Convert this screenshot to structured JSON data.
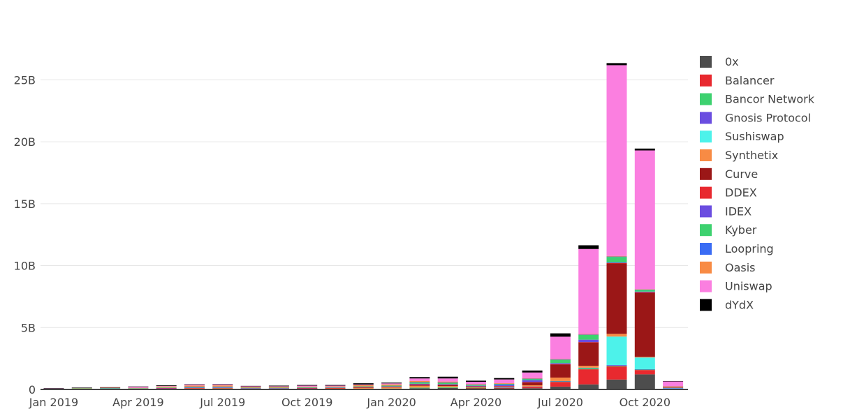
{
  "chart_data": {
    "type": "bar",
    "stacked": true,
    "title": "",
    "xlabel": "",
    "ylabel": "",
    "ylim": [
      0,
      27.5
    ],
    "y_unit": "B",
    "yticks": [
      0,
      5,
      10,
      15,
      20,
      25
    ],
    "ytick_labels": [
      "0",
      "5B",
      "10B",
      "15B",
      "20B",
      "25B"
    ],
    "grid": true,
    "legend_position": "right",
    "categories": [
      "Jan 2019",
      "Feb 2019",
      "Mar 2019",
      "Apr 2019",
      "May 2019",
      "Jun 2019",
      "Jul 2019",
      "Aug 2019",
      "Sep 2019",
      "Oct 2019",
      "Nov 2019",
      "Dec 2019",
      "Jan 2020",
      "Feb 2020",
      "Mar 2020",
      "Apr 2020",
      "May 2020",
      "Jun 2020",
      "Jul 2020",
      "Aug 2020",
      "Sep 2020",
      "Oct 2020",
      "Nov 2020"
    ],
    "xtick_labels": [
      "Jan 2019",
      "Apr 2019",
      "Jul 2019",
      "Oct 2019",
      "Jan 2020",
      "Apr 2020",
      "Jul 2020",
      "Oct 2020"
    ],
    "xtick_indices": [
      0,
      3,
      6,
      9,
      12,
      15,
      18,
      21
    ],
    "series": [
      {
        "name": "0x",
        "color": "#4d4d4d",
        "values": [
          0.01,
          0.02,
          0.03,
          0.02,
          0.04,
          0.05,
          0.05,
          0.03,
          0.03,
          0.03,
          0.03,
          0.04,
          0.05,
          0.1,
          0.12,
          0.1,
          0.1,
          0.1,
          0.23,
          0.41,
          0.8,
          1.22,
          0.05
        ]
      },
      {
        "name": "Balancer",
        "color": "#e8292f",
        "values": [
          0,
          0,
          0,
          0,
          0,
          0,
          0,
          0,
          0,
          0,
          0,
          0,
          0,
          0,
          0,
          0.01,
          0.02,
          0.1,
          0.38,
          1.22,
          1.07,
          0.35,
          0.02
        ]
      },
      {
        "name": "Bancor Network",
        "color": "#3dd16f",
        "values": [
          0.01,
          0.02,
          0.02,
          0.02,
          0.03,
          0.03,
          0.03,
          0.02,
          0.02,
          0.02,
          0.02,
          0.02,
          0.02,
          0.05,
          0.05,
          0.03,
          0.03,
          0.03,
          0.05,
          0.1,
          0.05,
          0.05,
          0.01
        ]
      },
      {
        "name": "Gnosis Protocol",
        "color": "#6a4de0",
        "values": [
          0,
          0,
          0,
          0,
          0,
          0,
          0,
          0,
          0,
          0,
          0,
          0,
          0,
          0,
          0,
          0,
          0.01,
          0.01,
          0.02,
          0.03,
          0.05,
          0.02,
          0.01
        ]
      },
      {
        "name": "Sushiswap",
        "color": "#4df2ea",
        "values": [
          0,
          0,
          0,
          0,
          0,
          0,
          0,
          0,
          0,
          0,
          0,
          0,
          0,
          0,
          0,
          0,
          0,
          0,
          0,
          0,
          2.3,
          0.94,
          0.05
        ]
      },
      {
        "name": "Synthetix",
        "color": "#f88b44",
        "values": [
          0,
          0,
          0,
          0,
          0,
          0.01,
          0.02,
          0.02,
          0.02,
          0.03,
          0.04,
          0.08,
          0.1,
          0.15,
          0.1,
          0.05,
          0.05,
          0.1,
          0.28,
          0.15,
          0.22,
          0.05,
          0.01
        ]
      },
      {
        "name": "Curve",
        "color": "#9b1717",
        "values": [
          0,
          0,
          0,
          0,
          0,
          0,
          0,
          0,
          0,
          0.02,
          0.02,
          0.02,
          0.03,
          0.1,
          0.1,
          0.05,
          0.05,
          0.25,
          1.07,
          1.9,
          5.7,
          5.2,
          0.05
        ]
      },
      {
        "name": "DDEX",
        "color": "#e8292f",
        "values": [
          0.01,
          0.01,
          0.01,
          0.01,
          0.02,
          0.02,
          0.02,
          0.01,
          0.01,
          0.01,
          0.01,
          0.01,
          0.01,
          0.01,
          0.01,
          0.01,
          0.01,
          0.01,
          0.01,
          0.01,
          0.01,
          0.02,
          0.01
        ]
      },
      {
        "name": "IDEX",
        "color": "#6a4de0",
        "values": [
          0.02,
          0.02,
          0.02,
          0.02,
          0.03,
          0.04,
          0.04,
          0.02,
          0.02,
          0.02,
          0.03,
          0.03,
          0.04,
          0.05,
          0.05,
          0.05,
          0.1,
          0.15,
          0.08,
          0.2,
          0.05,
          0.05,
          0.01
        ]
      },
      {
        "name": "Kyber",
        "color": "#3dd16f",
        "values": [
          0.01,
          0.02,
          0.03,
          0.03,
          0.04,
          0.06,
          0.06,
          0.04,
          0.04,
          0.04,
          0.04,
          0.05,
          0.06,
          0.12,
          0.12,
          0.08,
          0.08,
          0.1,
          0.28,
          0.38,
          0.45,
          0.15,
          0.02
        ]
      },
      {
        "name": "Loopring",
        "color": "#3a6cf4",
        "values": [
          0,
          0,
          0,
          0,
          0,
          0.01,
          0.01,
          0,
          0,
          0,
          0,
          0,
          0,
          0.01,
          0.01,
          0.01,
          0.01,
          0.02,
          0.02,
          0.03,
          0.03,
          0.02,
          0.01
        ]
      },
      {
        "name": "Oasis",
        "color": "#f88b44",
        "values": [
          0.02,
          0.04,
          0.05,
          0.03,
          0.08,
          0.1,
          0.1,
          0.06,
          0.07,
          0.06,
          0.06,
          0.1,
          0.1,
          0.1,
          0.08,
          0.05,
          0.05,
          0.05,
          0.05,
          0.05,
          0.05,
          0.03,
          0.01
        ]
      },
      {
        "name": "Uniswap",
        "color": "#fb7fe0",
        "values": [
          0.01,
          0.01,
          0.01,
          0.1,
          0.04,
          0.08,
          0.08,
          0.08,
          0.05,
          0.08,
          0.06,
          0.05,
          0.08,
          0.2,
          0.25,
          0.18,
          0.3,
          0.45,
          1.79,
          6.86,
          15.4,
          11.2,
          0.4
        ]
      },
      {
        "name": "dYdX",
        "color": "#000000",
        "values": [
          0.01,
          0.01,
          0.01,
          0.01,
          0.05,
          0.02,
          0.02,
          0.01,
          0.05,
          0.05,
          0.05,
          0.1,
          0.06,
          0.11,
          0.14,
          0.09,
          0.11,
          0.16,
          0.27,
          0.3,
          0.17,
          0.15,
          0.02
        ]
      }
    ]
  }
}
